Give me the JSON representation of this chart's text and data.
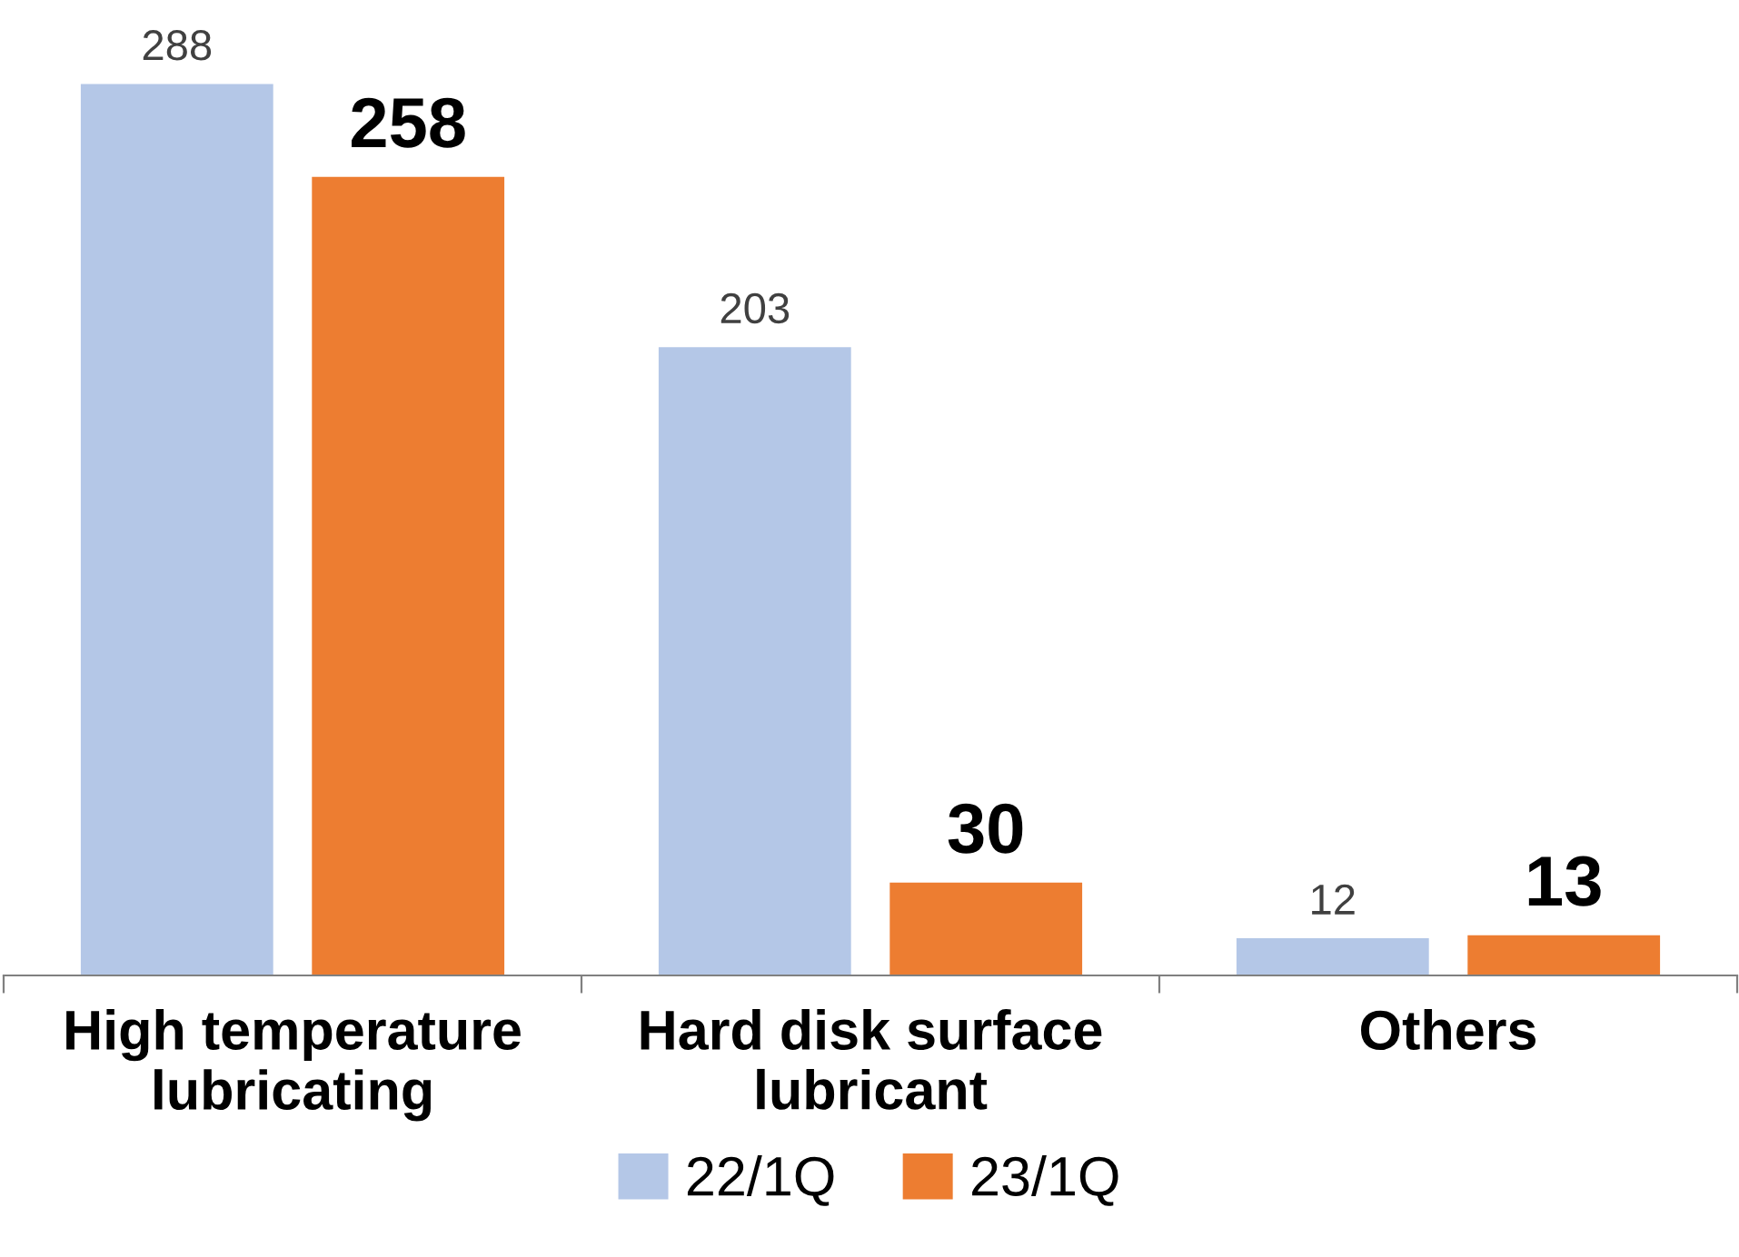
{
  "chart_data": {
    "type": "bar",
    "categories": [
      "High temperature\nlubricating",
      "Hard disk surface\nlubricant",
      "Others"
    ],
    "series": [
      {
        "name": "22/1Q",
        "color": "#b4c7e7",
        "values": [
          288,
          203,
          12
        ]
      },
      {
        "name": "23/1Q",
        "color": "#ed7d31",
        "values": [
          258,
          30,
          13
        ]
      }
    ],
    "data_labels": true,
    "grid": false,
    "legend": "bottom"
  }
}
